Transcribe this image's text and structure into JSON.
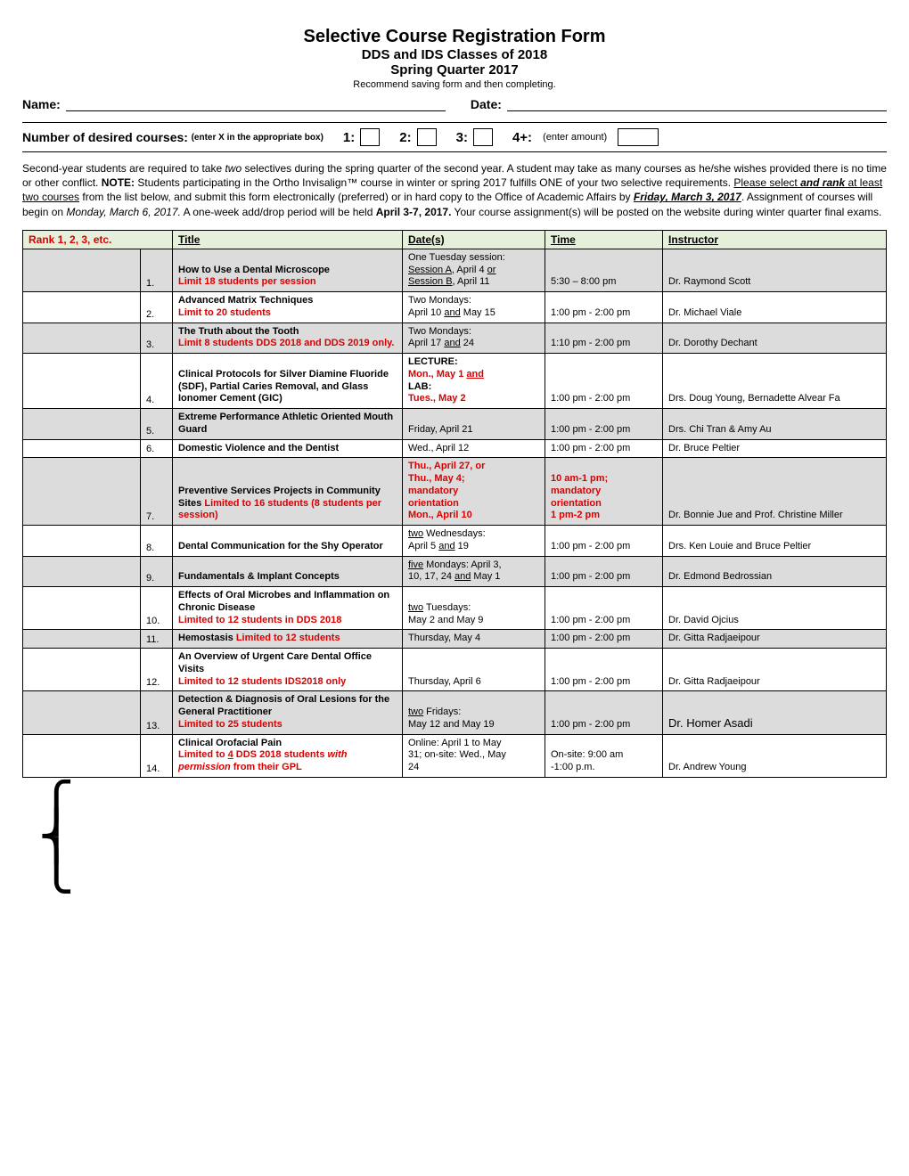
{
  "header": {
    "title": "Selective Course Registration Form",
    "subtitle1": "DDS and IDS Classes of 2018",
    "subtitle2": "Spring Quarter 2017",
    "recommend": "Recommend saving form and then completing."
  },
  "nameDate": {
    "nameLabel": "Name:",
    "dateLabel": "Date:"
  },
  "desired": {
    "label": "Number of desired courses:",
    "hint": "(enter X in the appropriate box)",
    "n1": "1:",
    "n2": "2:",
    "n3": "3:",
    "n4": "4+:",
    "enterAmount": "(enter amount)"
  },
  "paragraph": {
    "p1a": "Second-year students are required to take ",
    "p1b": "two",
    "p1c": " selectives during the spring quarter of the second year.  A student may take as many courses as he/she wishes provided there is no time or other conflict. ",
    "note": "NOTE:",
    "p1d": "  Students participating in the Ortho Invisalign™ course in winter or spring 2017 fulfills ONE of your two selective requirements. ",
    "p1e": "Please select ",
    "p1f": "and rank",
    "p1g": " at least two courses",
    "p1h": " from the list below, and submit this form electronically (preferred) or in hard copy to the Office of Academic Affairs by ",
    "deadline": "Friday, March 3, 2017",
    "p1i": ". Assignment of courses will begin on ",
    "assignDate": "Monday, March 6, 2017.",
    "p1j": " A one-week add/drop period will be held ",
    "addDrop": "April 3-7, 2017.",
    "p1k": " Your course assignment(s) will be posted on the website during winter quarter final exams."
  },
  "columns": {
    "rank": "Rank 1, 2, 3, etc.",
    "title": "Title",
    "date": "Date(s)",
    "time": "Time",
    "instructor": "Instructor"
  },
  "rows": [
    {
      "num": "1.",
      "title_bold": "How to Use a Dental Microscope",
      "title_red": "Limit 18 students per session",
      "date_lines": [
        {
          "text": "One Tuesday session:"
        },
        {
          "text_u": "Session A",
          "rest": ", April 4 ",
          "tail_u": "or"
        },
        {
          "text_u": "Session B",
          "rest": ", April 11"
        }
      ],
      "time": "5:30 – 8:00 pm",
      "instructor": "Dr. Raymond Scott",
      "shade": true
    },
    {
      "num": "2.",
      "title_bold": "Advanced Matrix Techniques",
      "title_red": "Limit to 20 students",
      "date_lines": [
        {
          "text": "Two Mondays:"
        },
        {
          "text": "April 10 ",
          "mid_u": "and",
          "rest2": " May 15"
        }
      ],
      "time": "1:00 pm - 2:00 pm",
      "instructor": "Dr. Michael Viale",
      "shade": false
    },
    {
      "num": "3.",
      "title_bold": "The Truth about the Tooth",
      "title_red": "Limit 8 students DDS 2018 and DDS 2019 only.",
      "date_lines": [
        {
          "text": "Two Mondays:"
        },
        {
          "text": "April 17 ",
          "mid_u": "and",
          "rest2": " 24"
        }
      ],
      "time": "1:10 pm - 2:00 pm",
      "instructor": "Dr. Dorothy Dechant",
      "shade": true
    },
    {
      "num": "4.",
      "title_bold": "Clinical Protocols for Silver Diamine Fluoride (SDF), Partial Caries Removal, and Glass Ionomer Cement (GIC)",
      "date_lines": [
        {
          "bold": "LECTURE:"
        },
        {
          "red": "Mon., May 1 ",
          "red_u": "and"
        },
        {
          "bold": "LAB:"
        },
        {
          "red": "Tues., May 2"
        }
      ],
      "time": "1:00 pm - 2:00 pm",
      "instructor": "Drs. Doug Young, Bernadette Alvear Fa",
      "shade": false
    },
    {
      "num": "5.",
      "title_bold": "Extreme Performance Athletic Oriented Mouth Guard",
      "date_lines": [
        {
          "text": "Friday, April 21"
        }
      ],
      "time": "1:00 pm - 2:00 pm",
      "instructor": "Drs. Chi Tran & Amy Au",
      "shade": true
    },
    {
      "num": "6.",
      "title_bold": "Domestic Violence and the Dentist",
      "date_lines": [
        {
          "text": "Wed., April 12"
        }
      ],
      "time": "1:00 pm - 2:00 pm",
      "instructor": "Dr. Bruce Peltier",
      "shade": false
    },
    {
      "num": "7.",
      "title_bold": "Preventive Services Projects in Community Sites",
      "title_red_inline": " Limited to 16 students (8 students per session)",
      "date_lines": [
        {
          "red": "Thu., April 27, or"
        },
        {
          "red": "Thu., May 4;"
        },
        {
          "red": "mandatory"
        },
        {
          "red": "orientation"
        },
        {
          "red": "Mon., April 10"
        }
      ],
      "time_lines": [
        {
          "red": "10 am-1 pm;"
        },
        {
          "red": "mandatory"
        },
        {
          "red": "orientation"
        },
        {
          "red": "1 pm-2 pm"
        }
      ],
      "instructor": "Dr. Bonnie Jue and Prof. Christine Miller",
      "shade": true
    },
    {
      "num": "8.",
      "title_bold": "Dental Communication for the Shy Operator",
      "date_lines": [
        {
          "text_u": "two",
          "rest": " Wednesdays:"
        },
        {
          "text": "April 5 ",
          "mid_u": "and",
          "rest2": " 19"
        }
      ],
      "time": "1:00 pm - 2:00 pm",
      "instructor": "Drs. Ken Louie and Bruce Peltier",
      "shade": false
    },
    {
      "num": "9.",
      "title_bold": "Fundamentals & Implant Concepts",
      "date_lines": [
        {
          "text_u": "five",
          "rest": " Mondays: April 3,"
        },
        {
          "text": "10, 17, 24 ",
          "mid_u": "and",
          "rest2": " May 1"
        }
      ],
      "time": "1:00 pm - 2:00 pm",
      "instructor": "Dr. Edmond Bedrossian",
      "shade": true
    },
    {
      "num": "10.",
      "title_bold": "Effects of Oral Microbes and Inflammation on Chronic Disease",
      "title_red": "Limited to 12 students in DDS 2018",
      "date_lines": [
        {
          "text_u": "two",
          "rest": " Tuesdays:"
        },
        {
          "text": "May 2 and May 9"
        }
      ],
      "time": "1:00 pm - 2:00 pm",
      "instructor": "Dr. David Ojcius",
      "shade": false
    },
    {
      "num": "11.",
      "title_bold": "Hemostasis",
      "title_red_inline": " Limited to 12 students",
      "date_lines": [
        {
          "text": "Thursday, May 4"
        }
      ],
      "time": "1:00 pm - 2:00 pm",
      "instructor": "Dr. Gitta Radjaeipour",
      "shade": true
    },
    {
      "num": "12.",
      "title_bold": "An Overview of Urgent Care Dental Office Visits",
      "title_red": "Limited to 12 students IDS2018 only",
      "date_lines": [
        {
          "text": "Thursday, April 6"
        }
      ],
      "time": "1:00 pm - 2:00 pm",
      "instructor": "Dr. Gitta Radjaeipour",
      "shade": false
    },
    {
      "num": "13.",
      "title_bold": "Detection & Diagnosis of Oral Lesions for the General Practitioner",
      "title_red": "Limited to 25 students",
      "date_lines": [
        {
          "text_u": "two",
          "rest": " Fridays:"
        },
        {
          "text": "May 12 and May 19"
        }
      ],
      "time": "1:00 pm - 2:00 pm",
      "instructor_big": "Dr. Homer Asadi",
      "shade": true
    },
    {
      "num": "14.",
      "title_bold": "Clinical Orofacial Pain",
      "title_red_html": "Limited to <u>4</u> DDS 2018 students <i>with permission</i> from their GPL",
      "date_lines": [
        {
          "text": "Online: April 1 to May"
        },
        {
          "text": "31; on-site: Wed., May"
        },
        {
          "text": "24"
        }
      ],
      "time_lines_plain": [
        "On-site: 9:00 am",
        "-1:00 p.m."
      ],
      "instructor": "Dr. Andrew Young",
      "shade": false
    }
  ]
}
